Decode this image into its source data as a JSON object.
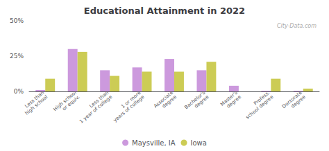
{
  "chart_data": {
    "type": "bar",
    "title": "Educational Attainment in 2022",
    "categories": [
      "Less than\nhigh school",
      "High school\nor equiv.",
      "Less than\n1 year of college",
      "1 or more\nyears of college",
      "Associate\ndegree",
      "Bachelor's\ndegree",
      "Master's\ndegree",
      "Profess.\nschool degree",
      "Doctorate\ndegree"
    ],
    "series": [
      {
        "name": "Maysville, IA",
        "color": "#cc99dd",
        "values": [
          1,
          30,
          15,
          17,
          23,
          15,
          4,
          0.5,
          0.5
        ]
      },
      {
        "name": "Iowa",
        "color": "#cccc55",
        "values": [
          9,
          28,
          11,
          14,
          14,
          21,
          0,
          9,
          2
        ]
      }
    ],
    "ylim": [
      0,
      50
    ],
    "yticks": [
      {
        "value": 0,
        "label": "0%"
      },
      {
        "value": 25,
        "label": "25%"
      },
      {
        "value": 50,
        "label": "50%"
      }
    ],
    "grid": false,
    "legend": "bottom",
    "annotations": [
      "City-Data.com"
    ]
  }
}
